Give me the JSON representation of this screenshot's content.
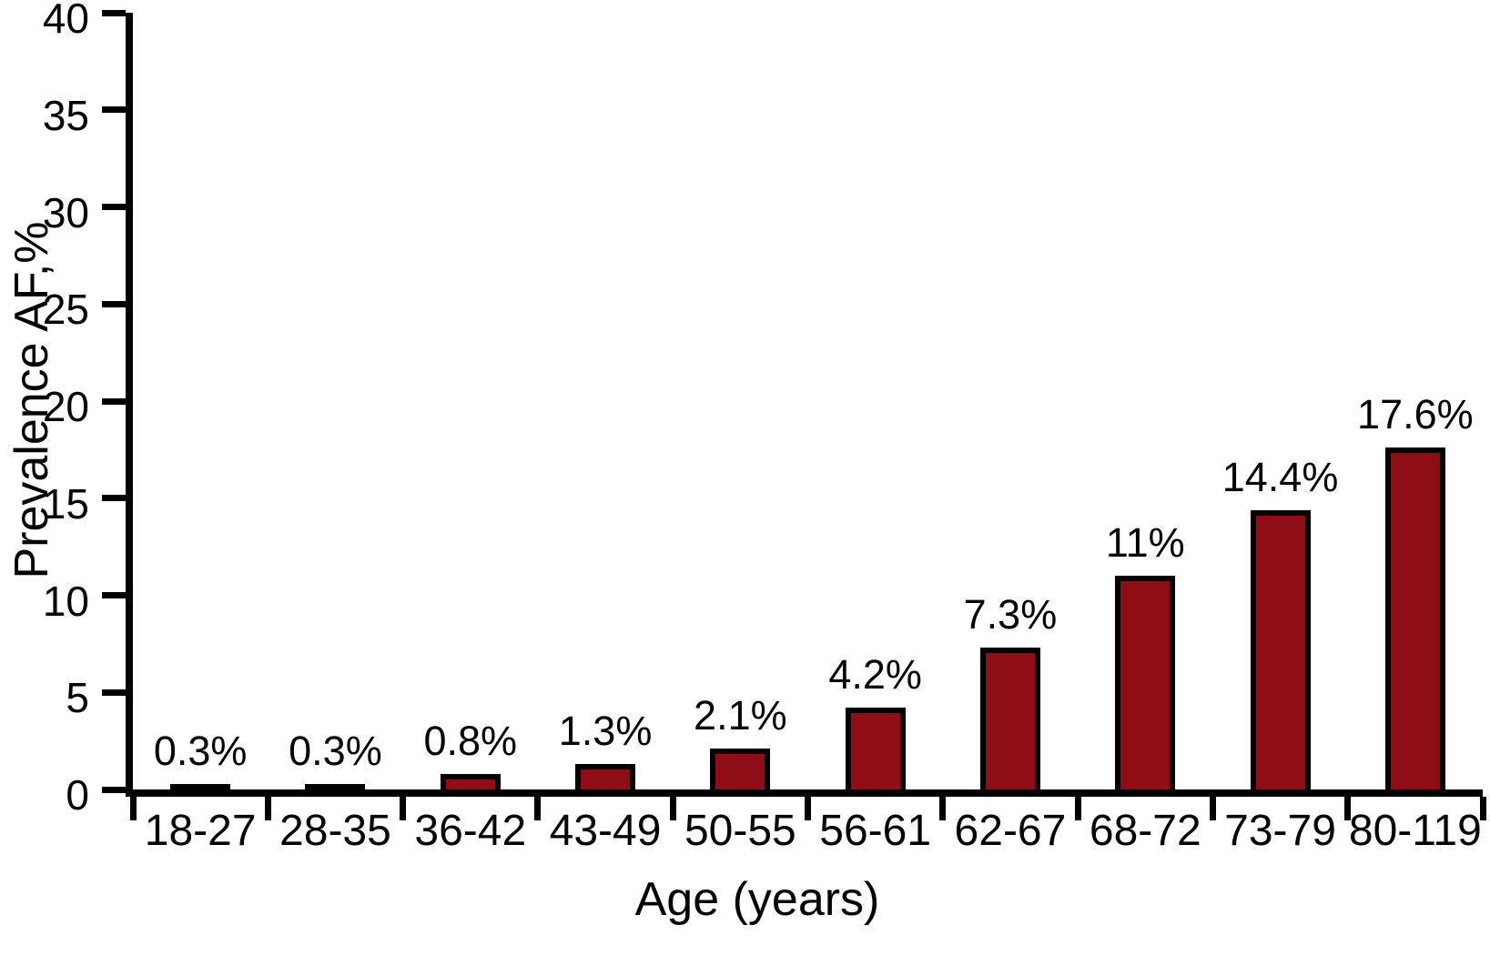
{
  "chart_data": {
    "type": "bar",
    "title": "",
    "xlabel": "Age (years)",
    "ylabel": "Prevalence AF,%",
    "categories": [
      "18-27",
      "28-35",
      "36-42",
      "43-49",
      "50-55",
      "56-61",
      "62-67",
      "68-72",
      "73-79",
      "80-119"
    ],
    "values": [
      0.3,
      0.3,
      0.8,
      1.3,
      2.1,
      4.2,
      7.3,
      11,
      14.4,
      17.6
    ],
    "bar_labels": [
      "0.3%",
      "0.3%",
      "0.8%",
      "1.3%",
      "2.1%",
      "4.2%",
      "7.3%",
      "11%",
      "14.4%",
      "17.6%"
    ],
    "ylim": [
      0,
      40
    ],
    "yticks": [
      0,
      5,
      10,
      15,
      20,
      25,
      30,
      35,
      40
    ],
    "grid": false,
    "legend": "none",
    "colors": {
      "bar_fill": "#8F0D15",
      "bar_border": "#000000",
      "axis": "#000000",
      "text": "#000000"
    }
  }
}
